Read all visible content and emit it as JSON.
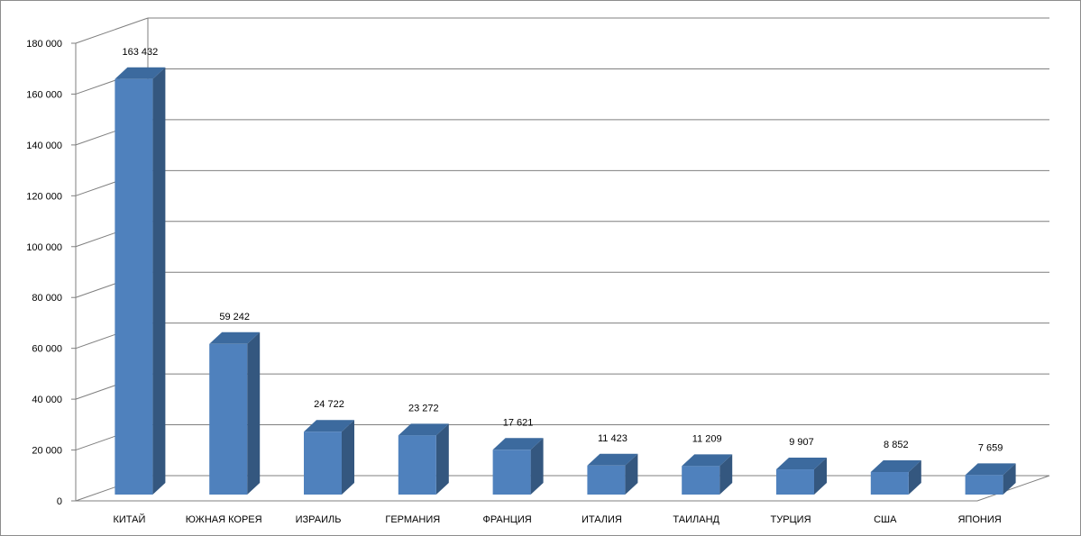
{
  "chart_data": {
    "type": "bar",
    "title": "",
    "xlabel": "",
    "ylabel": "",
    "categories": [
      "КИТАЙ",
      "ЮЖНАЯ КОРЕЯ",
      "ИЗРАИЛЬ",
      "ГЕРМАНИЯ",
      "ФРАНЦИЯ",
      "ИТАЛИЯ",
      "ТАИЛАНД",
      "ТУРЦИЯ",
      "США",
      "ЯПОНИЯ"
    ],
    "values": [
      163432,
      59242,
      24722,
      23272,
      17621,
      11423,
      11209,
      9907,
      8852,
      7659
    ],
    "value_labels": [
      "163 432",
      "59 242",
      "24 722",
      "23 272",
      "17 621",
      "11 423",
      "11 209",
      "9 907",
      "8 852",
      "7 659"
    ],
    "ylim": [
      0,
      180000
    ],
    "yticks": [
      0,
      20000,
      40000,
      60000,
      80000,
      100000,
      120000,
      140000,
      160000,
      180000
    ],
    "ytick_labels": [
      "0",
      "20 000",
      "40 000",
      "60 000",
      "80 000",
      "100 000",
      "120 000",
      "140 000",
      "160 000",
      "180 000"
    ],
    "grid": true,
    "legend": "none",
    "style": "3d-column",
    "colors": {
      "bar_front": "#4f81bd",
      "bar_side": "#34577f",
      "bar_top": "#3c6a9e",
      "grid": "#7f7f7f"
    }
  }
}
